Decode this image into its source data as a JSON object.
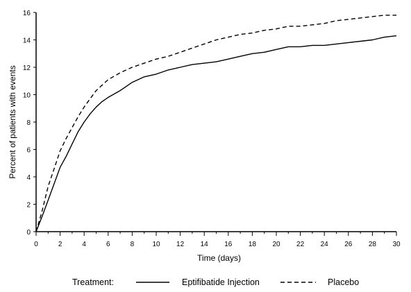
{
  "chart_data": {
    "type": "line",
    "title": "",
    "xlabel": "Time (days)",
    "ylabel": "Percent of patients with events",
    "xlim": [
      0,
      30
    ],
    "ylim": [
      0,
      16
    ],
    "x_ticks": [
      0,
      2,
      4,
      6,
      8,
      10,
      12,
      14,
      16,
      18,
      20,
      22,
      24,
      26,
      28,
      30
    ],
    "y_ticks": [
      0,
      2,
      4,
      6,
      8,
      10,
      12,
      14,
      16
    ],
    "grid": false,
    "legend": {
      "title": "Treatment:",
      "placement": "bottom"
    },
    "series": [
      {
        "name": "Eptifibatide Injection",
        "style": "solid",
        "color": "#000000",
        "x": [
          0,
          0.5,
          1,
          1.5,
          2,
          2.5,
          3,
          3.5,
          4,
          4.5,
          5,
          5.5,
          6,
          7,
          8,
          9,
          10,
          11,
          12,
          13,
          14,
          15,
          16,
          17,
          18,
          19,
          20,
          21,
          22,
          23,
          24,
          25,
          26,
          27,
          28,
          29,
          30
        ],
        "y": [
          0,
          1.1,
          2.3,
          3.5,
          4.7,
          5.5,
          6.4,
          7.3,
          8.0,
          8.6,
          9.1,
          9.5,
          9.8,
          10.3,
          10.9,
          11.3,
          11.5,
          11.8,
          12.0,
          12.2,
          12.3,
          12.4,
          12.6,
          12.8,
          13.0,
          13.1,
          13.3,
          13.5,
          13.5,
          13.6,
          13.6,
          13.7,
          13.8,
          13.9,
          14.0,
          14.2,
          14.3
        ]
      },
      {
        "name": "Placebo",
        "style": "dashed",
        "color": "#000000",
        "x": [
          0,
          0.5,
          1,
          1.5,
          2,
          2.5,
          3,
          3.5,
          4,
          4.5,
          5,
          5.5,
          6,
          7,
          8,
          9,
          10,
          11,
          12,
          13,
          14,
          15,
          16,
          17,
          18,
          19,
          20,
          21,
          22,
          23,
          24,
          25,
          26,
          27,
          28,
          29,
          30
        ],
        "y": [
          0,
          1.5,
          3.3,
          4.6,
          5.9,
          6.8,
          7.6,
          8.4,
          9.1,
          9.7,
          10.3,
          10.7,
          11.1,
          11.6,
          12.0,
          12.3,
          12.6,
          12.8,
          13.1,
          13.4,
          13.7,
          14.0,
          14.2,
          14.4,
          14.5,
          14.7,
          14.8,
          15.0,
          15.0,
          15.1,
          15.2,
          15.4,
          15.5,
          15.6,
          15.7,
          15.8,
          15.8
        ]
      }
    ]
  }
}
